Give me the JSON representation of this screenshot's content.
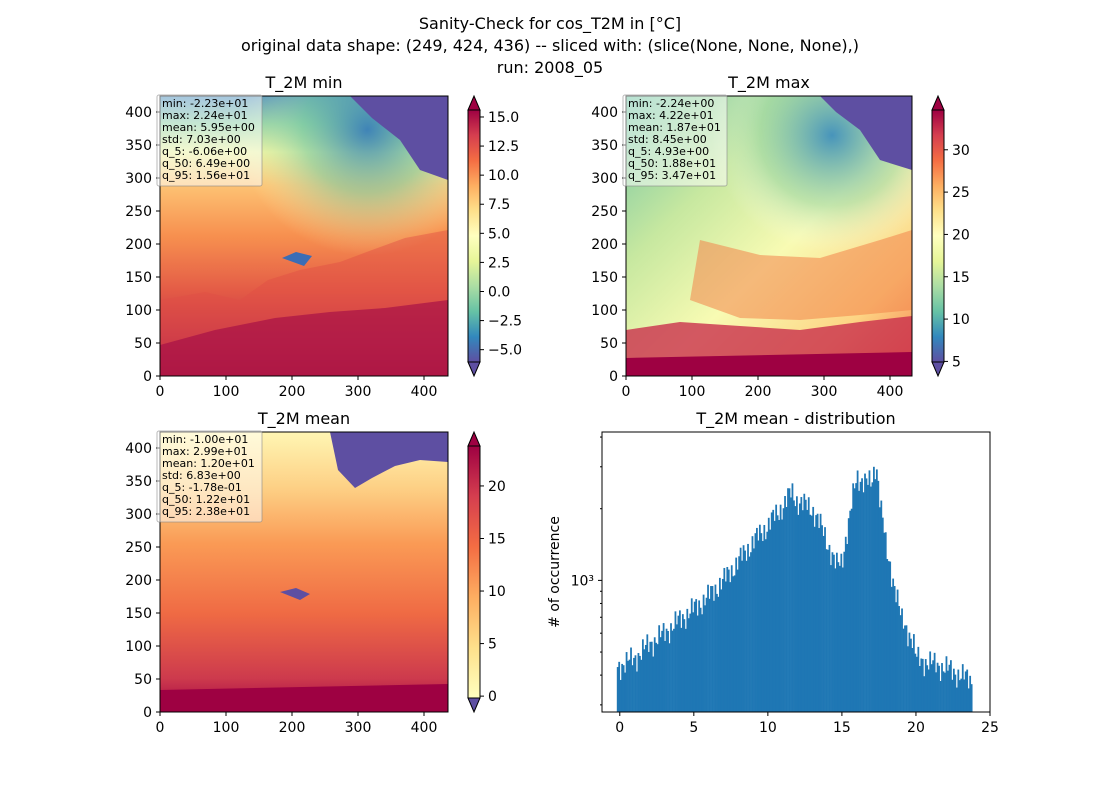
{
  "figure": {
    "suptitle": [
      "Sanity-Check for cos_T2M in [°C]",
      "original data shape: (249, 424, 436) -- sliced with: (slice(None, None, None),)",
      "run: 2008_05"
    ]
  },
  "chart_data": [
    {
      "type": "heatmap",
      "title": "T_2M min",
      "colormap": "Spectral_r",
      "xlim": [
        0,
        436
      ],
      "ylim": [
        0,
        424
      ],
      "xticks": [
        0,
        100,
        200,
        300,
        400
      ],
      "yticks": [
        0,
        50,
        100,
        150,
        200,
        250,
        300,
        350,
        400
      ],
      "colorbar": {
        "range": [
          -6.06,
          15.6
        ],
        "ticks": [
          -5.0,
          -2.5,
          0.0,
          2.5,
          5.0,
          7.5,
          10.0,
          12.5,
          15.0
        ],
        "tick_labels": [
          "−5.0",
          "−2.5",
          "0.0",
          "2.5",
          "5.0",
          "7.5",
          "10.0",
          "12.5",
          "15.0"
        ],
        "extend": "both"
      },
      "stats": [
        "min: -2.23e+01",
        "max: 2.24e+01",
        "mean: 5.95e+00",
        "std: 7.03e+00",
        "q_5: -6.06e+00",
        "q_50: 6.49e+00",
        "q_95: 1.56e+01"
      ]
    },
    {
      "type": "heatmap",
      "title": "T_2M max",
      "colormap": "Spectral_r",
      "xlim": [
        0,
        436
      ],
      "ylim": [
        0,
        424
      ],
      "xticks": [
        0,
        100,
        200,
        300,
        400
      ],
      "yticks": [
        0,
        50,
        100,
        150,
        200,
        250,
        300,
        350,
        400
      ],
      "colorbar": {
        "range": [
          4.93,
          34.7
        ],
        "ticks": [
          5,
          10,
          15,
          20,
          25,
          30
        ],
        "tick_labels": [
          "5",
          "10",
          "15",
          "20",
          "25",
          "30"
        ],
        "extend": "both"
      },
      "stats": [
        "min: -2.24e+00",
        "max: 4.22e+01",
        "mean: 1.87e+01",
        "std: 8.45e+00",
        "q_5: 4.93e+00",
        "q_50: 1.88e+01",
        "q_95: 3.47e+01"
      ]
    },
    {
      "type": "heatmap",
      "title": "T_2M mean",
      "colormap": "Spectral_r",
      "xlim": [
        0,
        436
      ],
      "ylim": [
        0,
        424
      ],
      "xticks": [
        0,
        100,
        200,
        300,
        400
      ],
      "yticks": [
        0,
        50,
        100,
        150,
        200,
        250,
        300,
        350,
        400
      ],
      "colorbar": {
        "range": [
          -0.178,
          23.8
        ],
        "ticks": [
          0,
          5,
          10,
          15,
          20
        ],
        "tick_labels": [
          "0",
          "5",
          "10",
          "15",
          "20"
        ],
        "extend": "both"
      },
      "stats": [
        "min: -1.00e+01",
        "max: 2.99e+01",
        "mean: 1.20e+01",
        "std: 6.83e+00",
        "q_5: -1.78e-01",
        "q_50: 1.22e+01",
        "q_95: 2.38e+01"
      ]
    },
    {
      "type": "bar",
      "title": "T_2M mean - distribution",
      "ylabel": "# of occurrence",
      "xlim": [
        -1.2,
        25
      ],
      "xticks": [
        0,
        5,
        10,
        15,
        20,
        25
      ],
      "yscale": "log",
      "ylim": [
        280,
        4200
      ],
      "yticks": [
        1000
      ],
      "ytick_labels": [
        "10³"
      ],
      "color": "#1f77b4",
      "x_range": [
        -0.2,
        23.8
      ],
      "bin_width": 0.1,
      "profile": [
        [
          -0.2,
          430
        ],
        [
          0.0,
          440
        ],
        [
          1.0,
          470
        ],
        [
          2.0,
          540
        ],
        [
          3.0,
          600
        ],
        [
          4.0,
          680
        ],
        [
          5.0,
          760
        ],
        [
          6.0,
          860
        ],
        [
          7.0,
          1000
        ],
        [
          8.0,
          1200
        ],
        [
          9.0,
          1450
        ],
        [
          10.0,
          1700
        ],
        [
          11.0,
          2050
        ],
        [
          11.6,
          2350
        ],
        [
          12.0,
          2150
        ],
        [
          13.0,
          2000
        ],
        [
          14.0,
          1450
        ],
        [
          14.6,
          1150
        ],
        [
          15.0,
          1200
        ],
        [
          15.5,
          1800
        ],
        [
          16.0,
          2700
        ],
        [
          16.5,
          2650
        ],
        [
          17.0,
          2500
        ],
        [
          17.3,
          3150
        ],
        [
          17.6,
          2100
        ],
        [
          18.0,
          1300
        ],
        [
          19.0,
          680
        ],
        [
          19.8,
          560
        ],
        [
          20.0,
          470
        ],
        [
          21.0,
          450
        ],
        [
          22.0,
          430
        ],
        [
          23.0,
          400
        ],
        [
          23.8,
          380
        ]
      ]
    }
  ]
}
